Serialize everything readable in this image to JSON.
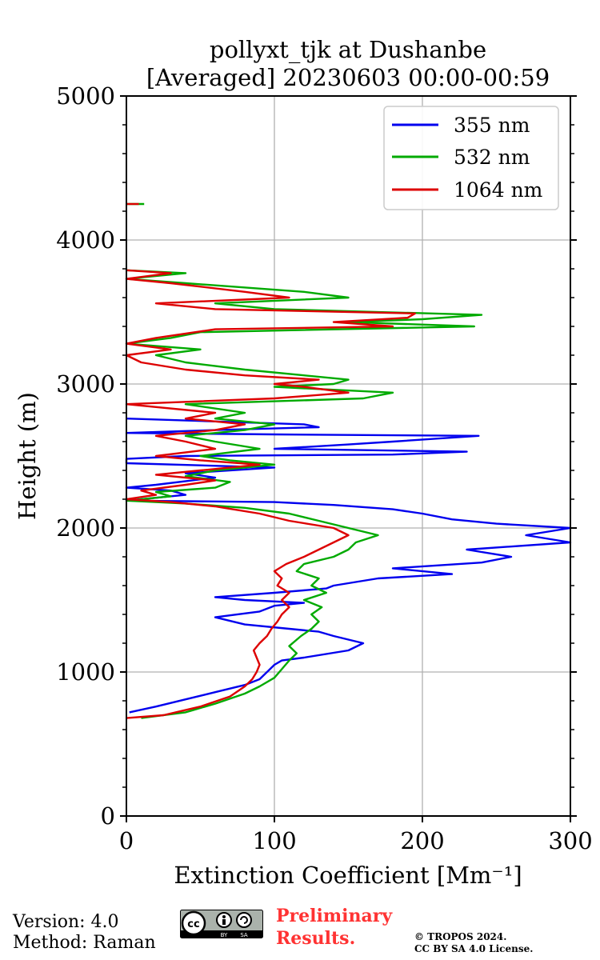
{
  "chart_data": {
    "type": "line",
    "title": "pollyxt_tjk at Dushanbe",
    "subtitle": "[Averaged] 20230603 00:00-00:59",
    "xlabel": "Extinction Coefficient [Mm⁻¹]",
    "ylabel": "Height (m)",
    "xlim": [
      0,
      300
    ],
    "ylim": [
      0,
      5000
    ],
    "xticks": [
      "0",
      "100",
      "200",
      "300"
    ],
    "yticks": [
      "0",
      "1000",
      "2000",
      "3000",
      "4000",
      "5000"
    ],
    "grid": true,
    "legend_position": "top-right",
    "series": [
      {
        "name": "355 nm",
        "color": "#0000ee",
        "points": [
          [
            2,
            720
          ],
          [
            20,
            760
          ],
          [
            40,
            810
          ],
          [
            60,
            860
          ],
          [
            80,
            910
          ],
          [
            90,
            950
          ],
          [
            95,
            1000
          ],
          [
            100,
            1050
          ],
          [
            105,
            1080
          ],
          [
            120,
            1100
          ],
          [
            150,
            1150
          ],
          [
            160,
            1200
          ],
          [
            140,
            1250
          ],
          [
            130,
            1280
          ],
          [
            110,
            1300
          ],
          [
            80,
            1330
          ],
          [
            60,
            1380
          ],
          [
            90,
            1420
          ],
          [
            100,
            1460
          ],
          [
            120,
            1480
          ],
          [
            80,
            1500
          ],
          [
            60,
            1520
          ],
          [
            100,
            1550
          ],
          [
            135,
            1580
          ],
          [
            140,
            1600
          ],
          [
            170,
            1650
          ],
          [
            220,
            1680
          ],
          [
            180,
            1720
          ],
          [
            240,
            1760
          ],
          [
            260,
            1800
          ],
          [
            230,
            1850
          ],
          [
            300,
            1900
          ],
          [
            270,
            1950
          ],
          [
            300,
            2000
          ],
          [
            250,
            2030
          ],
          [
            220,
            2060
          ],
          [
            200,
            2100
          ],
          [
            180,
            2130
          ],
          [
            140,
            2160
          ],
          [
            100,
            2180
          ],
          [
            0,
            2190
          ],
          [
            40,
            2230
          ],
          [
            30,
            2260
          ],
          [
            0,
            2280
          ],
          [
            20,
            2300
          ],
          [
            60,
            2350
          ],
          [
            40,
            2380
          ],
          [
            100,
            2420
          ],
          [
            0,
            2450
          ],
          [
            0,
            2480
          ],
          [
            40,
            2500
          ],
          [
            180,
            2510
          ],
          [
            230,
            2530
          ],
          [
            100,
            2550
          ],
          [
            150,
            2580
          ],
          [
            180,
            2600
          ],
          [
            238,
            2640
          ],
          [
            100,
            2650
          ],
          [
            0,
            2660
          ],
          [
            60,
            2680
          ],
          [
            130,
            2700
          ],
          [
            120,
            2720
          ],
          [
            0,
            2760
          ]
        ]
      },
      {
        "name": "532 nm",
        "color": "#00aa00",
        "points": [
          [
            10,
            680
          ],
          [
            40,
            720
          ],
          [
            60,
            780
          ],
          [
            80,
            850
          ],
          [
            90,
            900
          ],
          [
            100,
            960
          ],
          [
            105,
            1020
          ],
          [
            110,
            1080
          ],
          [
            115,
            1130
          ],
          [
            110,
            1180
          ],
          [
            118,
            1250
          ],
          [
            125,
            1300
          ],
          [
            130,
            1350
          ],
          [
            125,
            1400
          ],
          [
            132,
            1450
          ],
          [
            120,
            1500
          ],
          [
            135,
            1550
          ],
          [
            125,
            1600
          ],
          [
            130,
            1650
          ],
          [
            115,
            1700
          ],
          [
            120,
            1750
          ],
          [
            140,
            1800
          ],
          [
            150,
            1850
          ],
          [
            155,
            1900
          ],
          [
            170,
            1950
          ],
          [
            150,
            2000
          ],
          [
            130,
            2050
          ],
          [
            110,
            2100
          ],
          [
            80,
            2140
          ],
          [
            40,
            2170
          ],
          [
            0,
            2190
          ],
          [
            30,
            2220
          ],
          [
            20,
            2250
          ],
          [
            60,
            2280
          ],
          [
            70,
            2320
          ],
          [
            40,
            2360
          ],
          [
            60,
            2400
          ],
          [
            100,
            2440
          ],
          [
            70,
            2470
          ],
          [
            50,
            2500
          ],
          [
            90,
            2550
          ],
          [
            60,
            2600
          ],
          [
            40,
            2640
          ],
          [
            80,
            2680
          ],
          [
            100,
            2720
          ],
          [
            60,
            2760
          ],
          [
            80,
            2800
          ],
          [
            40,
            2860
          ],
          [
            160,
            2900
          ],
          [
            180,
            2940
          ],
          [
            100,
            2980
          ],
          [
            140,
            3000
          ],
          [
            150,
            3030
          ],
          [
            120,
            3060
          ],
          [
            80,
            3100
          ],
          [
            40,
            3150
          ],
          [
            20,
            3200
          ],
          [
            50,
            3240
          ],
          [
            0,
            3280
          ],
          [
            30,
            3320
          ],
          [
            50,
            3360
          ],
          [
            235,
            3400
          ],
          [
            150,
            3430
          ],
          [
            200,
            3450
          ],
          [
            240,
            3480
          ],
          [
            100,
            3520
          ],
          [
            60,
            3560
          ],
          [
            150,
            3600
          ],
          [
            120,
            3640
          ],
          [
            40,
            3700
          ],
          [
            0,
            3730
          ],
          [
            40,
            3770
          ],
          [
            0,
            3790
          ]
        ]
      },
      {
        "name": "1064 nm",
        "color": "#dd0000",
        "points": [
          [
            0,
            680
          ],
          [
            25,
            700
          ],
          [
            50,
            760
          ],
          [
            70,
            830
          ],
          [
            80,
            900
          ],
          [
            85,
            950
          ],
          [
            88,
            1000
          ],
          [
            90,
            1050
          ],
          [
            88,
            1100
          ],
          [
            86,
            1150
          ],
          [
            90,
            1200
          ],
          [
            95,
            1250
          ],
          [
            98,
            1300
          ],
          [
            102,
            1350
          ],
          [
            105,
            1400
          ],
          [
            110,
            1450
          ],
          [
            105,
            1500
          ],
          [
            110,
            1550
          ],
          [
            102,
            1600
          ],
          [
            105,
            1650
          ],
          [
            100,
            1700
          ],
          [
            108,
            1750
          ],
          [
            120,
            1800
          ],
          [
            130,
            1850
          ],
          [
            140,
            1900
          ],
          [
            150,
            1950
          ],
          [
            140,
            2000
          ],
          [
            110,
            2050
          ],
          [
            90,
            2100
          ],
          [
            60,
            2150
          ],
          [
            30,
            2180
          ],
          [
            0,
            2200
          ],
          [
            20,
            2230
          ],
          [
            10,
            2260
          ],
          [
            40,
            2300
          ],
          [
            60,
            2330
          ],
          [
            20,
            2370
          ],
          [
            50,
            2400
          ],
          [
            90,
            2440
          ],
          [
            50,
            2470
          ],
          [
            20,
            2500
          ],
          [
            60,
            2550
          ],
          [
            40,
            2600
          ],
          [
            20,
            2640
          ],
          [
            60,
            2680
          ],
          [
            80,
            2720
          ],
          [
            40,
            2760
          ],
          [
            60,
            2800
          ],
          [
            0,
            2860
          ],
          [
            100,
            2900
          ],
          [
            150,
            2940
          ],
          [
            120,
            2980
          ],
          [
            100,
            3000
          ],
          [
            130,
            3030
          ],
          [
            80,
            3060
          ],
          [
            40,
            3100
          ],
          [
            10,
            3150
          ],
          [
            0,
            3200
          ],
          [
            30,
            3240
          ],
          [
            0,
            3280
          ],
          [
            20,
            3320
          ],
          [
            60,
            3380
          ],
          [
            180,
            3400
          ],
          [
            140,
            3430
          ],
          [
            190,
            3460
          ],
          [
            195,
            3490
          ],
          [
            60,
            3520
          ],
          [
            20,
            3560
          ],
          [
            110,
            3600
          ],
          [
            80,
            3640
          ],
          [
            30,
            3700
          ],
          [
            0,
            3730
          ],
          [
            30,
            3770
          ],
          [
            0,
            3790
          ]
        ]
      }
    ],
    "top_fragment": {
      "y": 4250,
      "x_start": 0,
      "x_end": 12
    }
  },
  "footer": {
    "version": "Version: 4.0",
    "method": "Method: Raman",
    "preliminary_line1": "Preliminary",
    "preliminary_line2": "Results.",
    "copyright_line1": "© TROPOS 2024.",
    "copyright_line2": "CC BY SA 4.0 License.",
    "cc_label": "cc",
    "cc_by": "BY",
    "cc_sa": "SA"
  }
}
